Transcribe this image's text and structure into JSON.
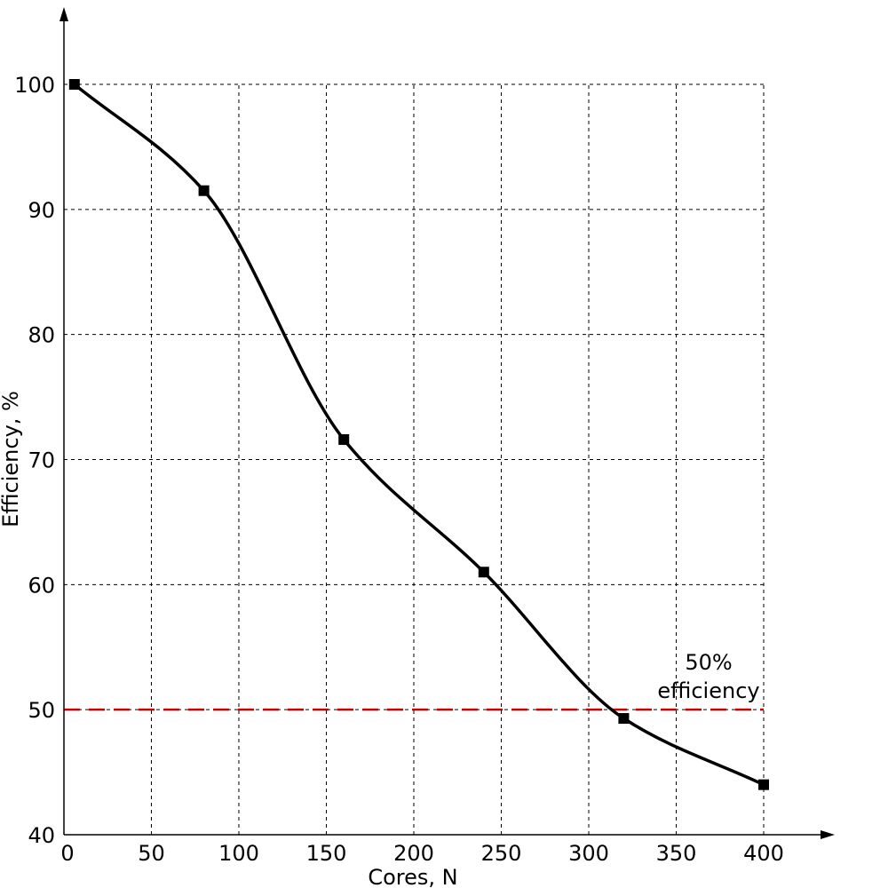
{
  "chart_data": {
    "type": "line",
    "xlabel": "Cores, N",
    "ylabel": "Efficiency, %",
    "xlim": [
      0,
      400
    ],
    "ylim": [
      40,
      100
    ],
    "grid": true,
    "x_ticks": [
      0,
      50,
      100,
      150,
      200,
      250,
      300,
      350,
      400
    ],
    "y_ticks": [
      40,
      50,
      60,
      70,
      80,
      90,
      100
    ],
    "series": [
      {
        "x": [
          6,
          80,
          160,
          240,
          320,
          400
        ],
        "y": [
          100,
          91.5,
          71.6,
          61.0,
          49.3,
          44.0
        ],
        "color": "#000000",
        "marker": "square"
      }
    ],
    "reference_line": {
      "y": 50,
      "color": "#cc0000",
      "style": "dashed",
      "label_lines": [
        "50%",
        "efficiency"
      ]
    }
  }
}
